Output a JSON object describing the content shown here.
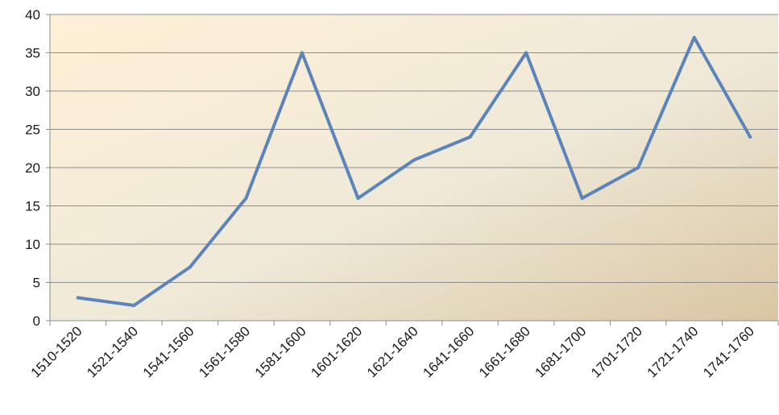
{
  "chart_data": {
    "type": "line",
    "title": "",
    "xlabel": "",
    "ylabel": "",
    "categories": [
      "1510-1520",
      "1521-1540",
      "1541-1560",
      "1561-1580",
      "1581-1600",
      "1601-1620",
      "1621-1640",
      "1641-1660",
      "1661-1680",
      "1681-1700",
      "1701-1720",
      "1721-1740",
      "1741-1760"
    ],
    "series": [
      {
        "values": [
          3,
          2,
          7,
          16,
          35,
          16,
          21,
          24,
          35,
          16,
          20,
          37,
          24
        ]
      }
    ],
    "ylim": [
      0,
      40
    ],
    "yticks": [
      0,
      5,
      10,
      15,
      20,
      25,
      30,
      35,
      40
    ],
    "grid": true,
    "legend": "none"
  },
  "colors": {
    "line": "#5b84ba",
    "plot_bg_start": "#fff0d6",
    "plot_bg_mid": "#efe9d8",
    "plot_bg_end": "#d9c6a2",
    "grid": "#8c8c8c"
  }
}
